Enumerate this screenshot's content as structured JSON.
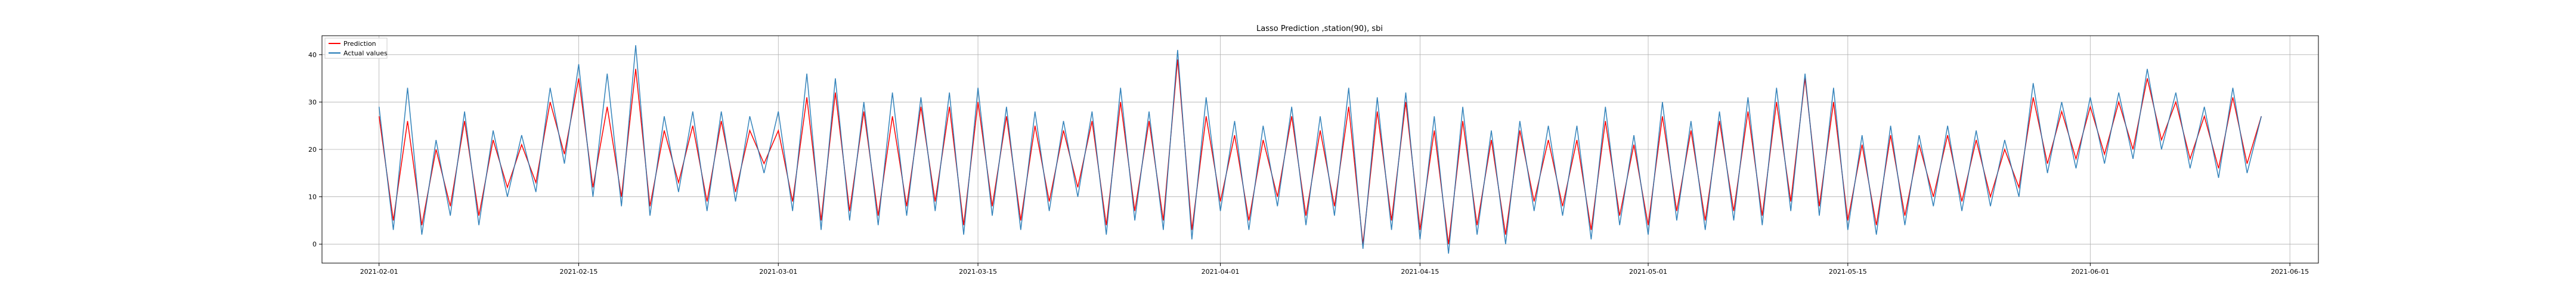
{
  "chart_data": {
    "type": "line",
    "title": "Lasso Prediction ,station(90), sbi",
    "xlabel": "",
    "ylabel": "",
    "x_range": [
      "2021-01-28",
      "2021-06-17"
    ],
    "ylim": [
      -4,
      44
    ],
    "grid": true,
    "legend_placement": "top-left",
    "x_ticks": [
      "2021-02-01",
      "2021-02-15",
      "2021-03-01",
      "2021-03-15",
      "2021-04-01",
      "2021-04-15",
      "2021-05-01",
      "2021-05-15",
      "2021-06-01",
      "2021-06-15"
    ],
    "y_ticks": [
      0,
      10,
      20,
      30,
      40
    ],
    "series": [
      {
        "name": "Prediction",
        "color": "#ff0000",
        "x": [
          "2021-02-01",
          "2021-02-02",
          "2021-02-03",
          "2021-02-04",
          "2021-02-05",
          "2021-02-06",
          "2021-02-07",
          "2021-02-08",
          "2021-02-09",
          "2021-02-10",
          "2021-02-11",
          "2021-02-12",
          "2021-02-13",
          "2021-02-14",
          "2021-02-15",
          "2021-02-16",
          "2021-02-17",
          "2021-02-18",
          "2021-02-19",
          "2021-02-20",
          "2021-02-21",
          "2021-02-22",
          "2021-02-23",
          "2021-02-24",
          "2021-02-25",
          "2021-02-26",
          "2021-02-27",
          "2021-02-28",
          "2021-03-01",
          "2021-03-02",
          "2021-03-03",
          "2021-03-04",
          "2021-03-05",
          "2021-03-06",
          "2021-03-07",
          "2021-03-08",
          "2021-03-09",
          "2021-03-10",
          "2021-03-11",
          "2021-03-12",
          "2021-03-13",
          "2021-03-14",
          "2021-03-15",
          "2021-03-16",
          "2021-03-17",
          "2021-03-18",
          "2021-03-19",
          "2021-03-20",
          "2021-03-21",
          "2021-03-22",
          "2021-03-23",
          "2021-03-24",
          "2021-03-25",
          "2021-03-26",
          "2021-03-27",
          "2021-03-28",
          "2021-03-29",
          "2021-03-30",
          "2021-03-31",
          "2021-04-01",
          "2021-04-02",
          "2021-04-03",
          "2021-04-04",
          "2021-04-05",
          "2021-04-06",
          "2021-04-07",
          "2021-04-08",
          "2021-04-09",
          "2021-04-10",
          "2021-04-11",
          "2021-04-12",
          "2021-04-13",
          "2021-04-14",
          "2021-04-15",
          "2021-04-16",
          "2021-04-17",
          "2021-04-18",
          "2021-04-19",
          "2021-04-20",
          "2021-04-21",
          "2021-04-22",
          "2021-04-23",
          "2021-04-24",
          "2021-04-25",
          "2021-04-26",
          "2021-04-27",
          "2021-04-28",
          "2021-04-29",
          "2021-04-30",
          "2021-05-01",
          "2021-05-02",
          "2021-05-03",
          "2021-05-04",
          "2021-05-05",
          "2021-05-06",
          "2021-05-07",
          "2021-05-08",
          "2021-05-09",
          "2021-05-10",
          "2021-05-11",
          "2021-05-12",
          "2021-05-13",
          "2021-05-14",
          "2021-05-15",
          "2021-05-16",
          "2021-05-17",
          "2021-05-18",
          "2021-05-19",
          "2021-05-20",
          "2021-05-21",
          "2021-05-22",
          "2021-05-23",
          "2021-05-24",
          "2021-05-25",
          "2021-05-26",
          "2021-05-27",
          "2021-05-28",
          "2021-05-29",
          "2021-05-30",
          "2021-05-31",
          "2021-06-01",
          "2021-06-02",
          "2021-06-03",
          "2021-06-04",
          "2021-06-05",
          "2021-06-06",
          "2021-06-07",
          "2021-06-08",
          "2021-06-09",
          "2021-06-10",
          "2021-06-11",
          "2021-06-12",
          "2021-06-13"
        ],
        "values": [
          27,
          5,
          26,
          4,
          20,
          8,
          26,
          6,
          22,
          12,
          21,
          13,
          30,
          19,
          35,
          12,
          29,
          10,
          37,
          8,
          24,
          13,
          25,
          9,
          26,
          11,
          24,
          17,
          24,
          9,
          31,
          5,
          32,
          7,
          28,
          6,
          27,
          8,
          29,
          9,
          29,
          4,
          30,
          8,
          27,
          5,
          25,
          9,
          24,
          12,
          26,
          4,
          30,
          7,
          26,
          5,
          39,
          3,
          27,
          9,
          23,
          5,
          22,
          10,
          27,
          6,
          24,
          8,
          29,
          0,
          28,
          5,
          30,
          3,
          24,
          0,
          26,
          4,
          22,
          2,
          24,
          9,
          22,
          8,
          22,
          3,
          26,
          6,
          21,
          4,
          27,
          7,
          24,
          5,
          26,
          7,
          28,
          6,
          30,
          9,
          35,
          8,
          30,
          5,
          21,
          4,
          23,
          6,
          21,
          10,
          23,
          9,
          22,
          10,
          20,
          12,
          31,
          17,
          28,
          18,
          29,
          19,
          30,
          20,
          35,
          22,
          30,
          18,
          27,
          16,
          31,
          17,
          27
        ]
      },
      {
        "name": "Actual values",
        "color": "#1f77b4",
        "x": [
          "2021-02-01",
          "2021-02-02",
          "2021-02-03",
          "2021-02-04",
          "2021-02-05",
          "2021-02-06",
          "2021-02-07",
          "2021-02-08",
          "2021-02-09",
          "2021-02-10",
          "2021-02-11",
          "2021-02-12",
          "2021-02-13",
          "2021-02-14",
          "2021-02-15",
          "2021-02-16",
          "2021-02-17",
          "2021-02-18",
          "2021-02-19",
          "2021-02-20",
          "2021-02-21",
          "2021-02-22",
          "2021-02-23",
          "2021-02-24",
          "2021-02-25",
          "2021-02-26",
          "2021-02-27",
          "2021-02-28",
          "2021-03-01",
          "2021-03-02",
          "2021-03-03",
          "2021-03-04",
          "2021-03-05",
          "2021-03-06",
          "2021-03-07",
          "2021-03-08",
          "2021-03-09",
          "2021-03-10",
          "2021-03-11",
          "2021-03-12",
          "2021-03-13",
          "2021-03-14",
          "2021-03-15",
          "2021-03-16",
          "2021-03-17",
          "2021-03-18",
          "2021-03-19",
          "2021-03-20",
          "2021-03-21",
          "2021-03-22",
          "2021-03-23",
          "2021-03-24",
          "2021-03-25",
          "2021-03-26",
          "2021-03-27",
          "2021-03-28",
          "2021-03-29",
          "2021-03-30",
          "2021-03-31",
          "2021-04-01",
          "2021-04-02",
          "2021-04-03",
          "2021-04-04",
          "2021-04-05",
          "2021-04-06",
          "2021-04-07",
          "2021-04-08",
          "2021-04-09",
          "2021-04-10",
          "2021-04-11",
          "2021-04-12",
          "2021-04-13",
          "2021-04-14",
          "2021-04-15",
          "2021-04-16",
          "2021-04-17",
          "2021-04-18",
          "2021-04-19",
          "2021-04-20",
          "2021-04-21",
          "2021-04-22",
          "2021-04-23",
          "2021-04-24",
          "2021-04-25",
          "2021-04-26",
          "2021-04-27",
          "2021-04-28",
          "2021-04-29",
          "2021-04-30",
          "2021-05-01",
          "2021-05-02",
          "2021-05-03",
          "2021-05-04",
          "2021-05-05",
          "2021-05-06",
          "2021-05-07",
          "2021-05-08",
          "2021-05-09",
          "2021-05-10",
          "2021-05-11",
          "2021-05-12",
          "2021-05-13",
          "2021-05-14",
          "2021-05-15",
          "2021-05-16",
          "2021-05-17",
          "2021-05-18",
          "2021-05-19",
          "2021-05-20",
          "2021-05-21",
          "2021-05-22",
          "2021-05-23",
          "2021-05-24",
          "2021-05-25",
          "2021-05-26",
          "2021-05-27",
          "2021-05-28",
          "2021-05-29",
          "2021-05-30",
          "2021-05-31",
          "2021-06-01",
          "2021-06-02",
          "2021-06-03",
          "2021-06-04",
          "2021-06-05",
          "2021-06-06",
          "2021-06-07",
          "2021-06-08",
          "2021-06-09",
          "2021-06-10",
          "2021-06-11",
          "2021-06-12",
          "2021-06-13"
        ],
        "values": [
          29,
          3,
          33,
          2,
          22,
          6,
          28,
          4,
          24,
          10,
          23,
          11,
          33,
          17,
          38,
          10,
          36,
          8,
          42,
          6,
          27,
          11,
          28,
          7,
          28,
          9,
          27,
          15,
          28,
          7,
          36,
          3,
          35,
          5,
          30,
          4,
          32,
          6,
          31,
          7,
          32,
          2,
          33,
          6,
          29,
          3,
          28,
          7,
          26,
          10,
          28,
          2,
          33,
          5,
          28,
          3,
          41,
          1,
          31,
          7,
          26,
          3,
          25,
          8,
          29,
          4,
          27,
          6,
          33,
          -1,
          31,
          3,
          32,
          1,
          27,
          -2,
          29,
          2,
          24,
          0,
          26,
          7,
          25,
          6,
          25,
          1,
          29,
          4,
          23,
          2,
          30,
          5,
          26,
          3,
          28,
          5,
          31,
          4,
          33,
          7,
          36,
          6,
          33,
          3,
          23,
          2,
          25,
          4,
          23,
          8,
          25,
          7,
          24,
          8,
          22,
          10,
          34,
          15,
          30,
          16,
          31,
          17,
          32,
          18,
          37,
          20,
          32,
          16,
          29,
          14,
          33,
          15,
          27
        ]
      }
    ]
  }
}
